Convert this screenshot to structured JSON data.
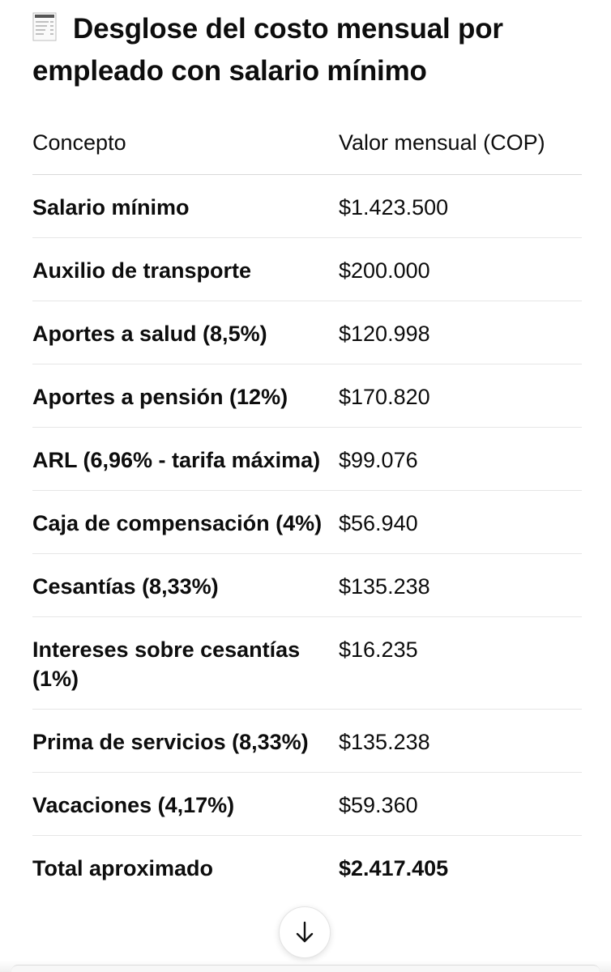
{
  "heading": {
    "icon": "receipt-icon",
    "text": "Desglose del costo mensual por empleado con salario mínimo"
  },
  "table": {
    "headers": {
      "concept": "Concepto",
      "value": "Valor mensual (COP)"
    },
    "rows": [
      {
        "concept": "Salario mínimo",
        "value": "$1.423.500"
      },
      {
        "concept": "Auxilio de transporte",
        "value": "$200.000"
      },
      {
        "concept": "Aportes a salud (8,5%)",
        "value": "$120.998"
      },
      {
        "concept": "Aportes a pensión (12%)",
        "value": "$170.820"
      },
      {
        "concept": "ARL (6,96% - tarifa máxima)",
        "value": "$99.076"
      },
      {
        "concept": "Caja de compensación (4%)",
        "value": "$56.940"
      },
      {
        "concept": "Cesantías (8,33%)",
        "value": "$135.238"
      },
      {
        "concept": "Intereses sobre cesantías (1%)",
        "value": "$16.235"
      },
      {
        "concept": "Prima de servicios (8,33%)",
        "value": "$135.238"
      },
      {
        "concept": "Vacaciones (4,17%)",
        "value": "$59.360"
      }
    ],
    "total": {
      "concept": "Total aproximado",
      "value": "$2.417.405"
    }
  },
  "scroll_button": {
    "icon": "arrow-down-icon"
  }
}
